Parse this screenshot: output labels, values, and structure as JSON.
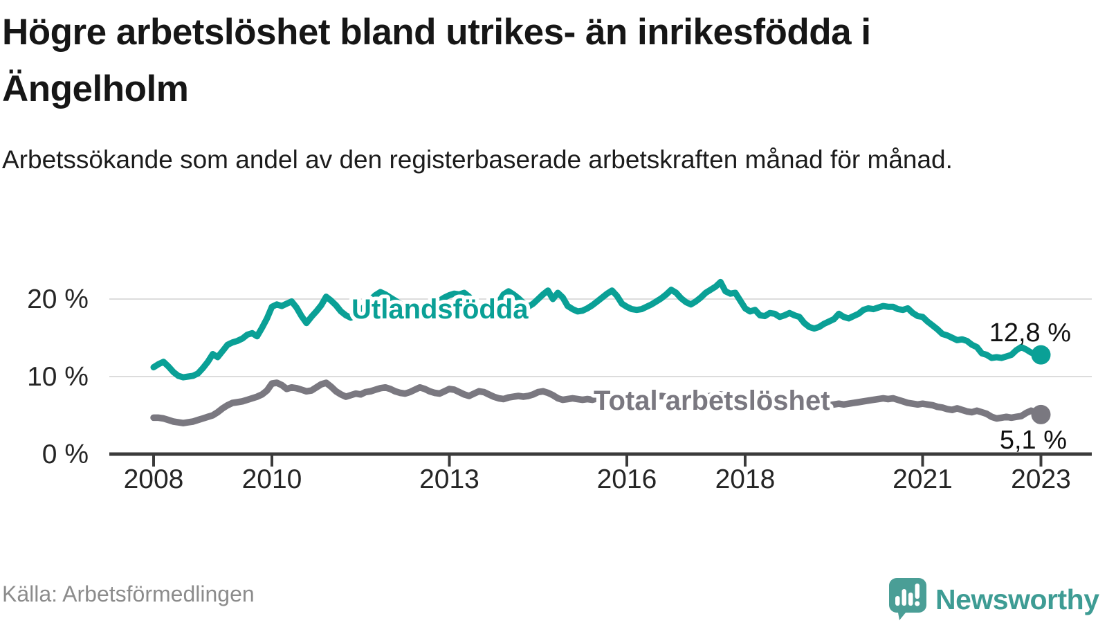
{
  "header": {
    "title": "Högre arbetslöshet bland utrikes- än inrikesfödda i Ängelholm",
    "subtitle": "Arbetssökande som andel av den registerbaserade arbetskraften månad för månad."
  },
  "footer": {
    "source": "Källa: Arbetsförmedlingen",
    "brand": "Newsworthy"
  },
  "colors": {
    "accent_teal": "#0aa096",
    "series_gray": "#7a7880",
    "gridline": "#dcdcdc",
    "axis": "#3b3b3b",
    "text_dark": "#252525",
    "logo_teal": "#4a9e96"
  },
  "chart_data": {
    "type": "line",
    "unit": "%",
    "frequency": "monthly",
    "x_start": "2008-01",
    "x_end": "2023-01",
    "grid": "horizontal",
    "legend_position": "inline-labels",
    "ylim": [
      0,
      23.5
    ],
    "x_ticks": [
      2008,
      2010,
      2013,
      2016,
      2018,
      2021,
      2023
    ],
    "y_ticks": [
      {
        "value": 0,
        "label": "0 %"
      },
      {
        "value": 10,
        "label": "10 %"
      },
      {
        "value": 20,
        "label": "20 %"
      }
    ],
    "series": [
      {
        "name": "Utlandsfödda",
        "color": "#0aa096",
        "end_label": "12,8 %",
        "values": [
          11.2,
          11.6,
          11.9,
          11.3,
          10.6,
          10.1,
          9.9,
          10.0,
          10.1,
          10.4,
          11.1,
          11.9,
          12.9,
          12.5,
          13.3,
          14.1,
          14.4,
          14.6,
          14.9,
          15.4,
          15.6,
          15.2,
          16.3,
          17.5,
          19.0,
          19.3,
          19.1,
          19.4,
          19.7,
          18.9,
          17.8,
          16.9,
          17.7,
          18.4,
          19.2,
          20.3,
          19.8,
          19.2,
          18.4,
          17.9,
          17.6,
          18.0,
          18.5,
          19.2,
          19.9,
          20.5,
          20.9,
          20.6,
          20.2,
          19.8,
          19.4,
          18.9,
          18.5,
          18.2,
          17.9,
          18.3,
          18.8,
          19.3,
          19.8,
          20.2,
          20.5,
          20.7,
          20.6,
          20.8,
          20.3,
          19.6,
          18.8,
          18.1,
          17.6,
          18.4,
          19.6,
          20.6,
          21.0,
          20.6,
          20.1,
          19.5,
          19.0,
          19.4,
          20.0,
          20.6,
          21.1,
          20.0,
          20.8,
          20.2,
          19.1,
          18.7,
          18.4,
          18.5,
          18.8,
          19.2,
          19.7,
          20.2,
          20.7,
          21.1,
          20.4,
          19.4,
          19.0,
          18.7,
          18.6,
          18.7,
          19.0,
          19.3,
          19.7,
          20.1,
          20.6,
          21.2,
          20.8,
          20.1,
          19.6,
          19.3,
          19.7,
          20.2,
          20.8,
          21.2,
          21.6,
          22.2,
          21.0,
          20.7,
          20.8,
          19.8,
          18.8,
          18.4,
          18.6,
          17.9,
          17.8,
          18.2,
          18.1,
          17.7,
          17.9,
          18.2,
          17.9,
          17.7,
          16.9,
          16.4,
          16.2,
          16.4,
          16.8,
          17.1,
          17.4,
          18.1,
          17.7,
          17.5,
          17.8,
          18.1,
          18.6,
          18.8,
          18.7,
          18.9,
          19.1,
          19.0,
          19.0,
          18.7,
          18.6,
          18.8,
          18.2,
          17.8,
          17.7,
          17.1,
          16.6,
          16.1,
          15.5,
          15.3,
          15.0,
          14.7,
          14.8,
          14.6,
          14.1,
          13.8,
          13.0,
          12.8,
          12.4,
          12.5,
          12.4,
          12.6,
          12.8,
          13.4,
          13.8,
          13.5,
          13.1,
          12.9,
          12.8
        ]
      },
      {
        "name": "Total arbetslöshet",
        "color": "#7a7880",
        "end_label": "5,1 %",
        "values": [
          4.7,
          4.7,
          4.6,
          4.4,
          4.2,
          4.1,
          4.0,
          4.1,
          4.2,
          4.4,
          4.6,
          4.8,
          5.0,
          5.4,
          5.9,
          6.3,
          6.6,
          6.7,
          6.8,
          7.0,
          7.2,
          7.4,
          7.7,
          8.2,
          9.1,
          9.2,
          8.9,
          8.4,
          8.6,
          8.5,
          8.3,
          8.1,
          8.2,
          8.6,
          9.0,
          9.2,
          8.7,
          8.1,
          7.7,
          7.4,
          7.6,
          7.8,
          7.7,
          8.0,
          8.1,
          8.3,
          8.5,
          8.6,
          8.4,
          8.1,
          7.9,
          7.8,
          8.0,
          8.3,
          8.6,
          8.4,
          8.1,
          7.9,
          7.8,
          8.1,
          8.4,
          8.3,
          8.0,
          7.7,
          7.5,
          7.8,
          8.1,
          8.0,
          7.7,
          7.4,
          7.2,
          7.1,
          7.3,
          7.4,
          7.5,
          7.4,
          7.5,
          7.7,
          8.0,
          8.1,
          7.9,
          7.6,
          7.2,
          7.0,
          7.1,
          7.2,
          7.1,
          7.0,
          7.1,
          7.0,
          7.2,
          7.4,
          7.5,
          7.4,
          7.3,
          7.2,
          7.3,
          7.4,
          7.3,
          7.2,
          7.1,
          7.2,
          7.4,
          7.5,
          7.4,
          7.3,
          7.2,
          7.1,
          7.0,
          7.1,
          7.2,
          7.3,
          7.4,
          7.5,
          7.6,
          7.7,
          7.6,
          7.5,
          7.4,
          7.3,
          7.2,
          7.1,
          7.0,
          6.9,
          6.8,
          6.9,
          7.0,
          6.9,
          6.8,
          6.7,
          6.6,
          6.5,
          6.4,
          6.3,
          6.2,
          6.1,
          6.2,
          6.3,
          6.4,
          6.5,
          6.4,
          6.5,
          6.6,
          6.7,
          6.8,
          6.9,
          7.0,
          7.1,
          7.2,
          7.1,
          7.2,
          7.0,
          6.8,
          6.6,
          6.5,
          6.4,
          6.5,
          6.4,
          6.3,
          6.1,
          6.0,
          5.8,
          5.7,
          5.9,
          5.7,
          5.5,
          5.4,
          5.6,
          5.4,
          5.2,
          4.8,
          4.6,
          4.7,
          4.8,
          4.7,
          4.8,
          4.9,
          5.3,
          5.6,
          5.4,
          5.1
        ]
      }
    ]
  }
}
